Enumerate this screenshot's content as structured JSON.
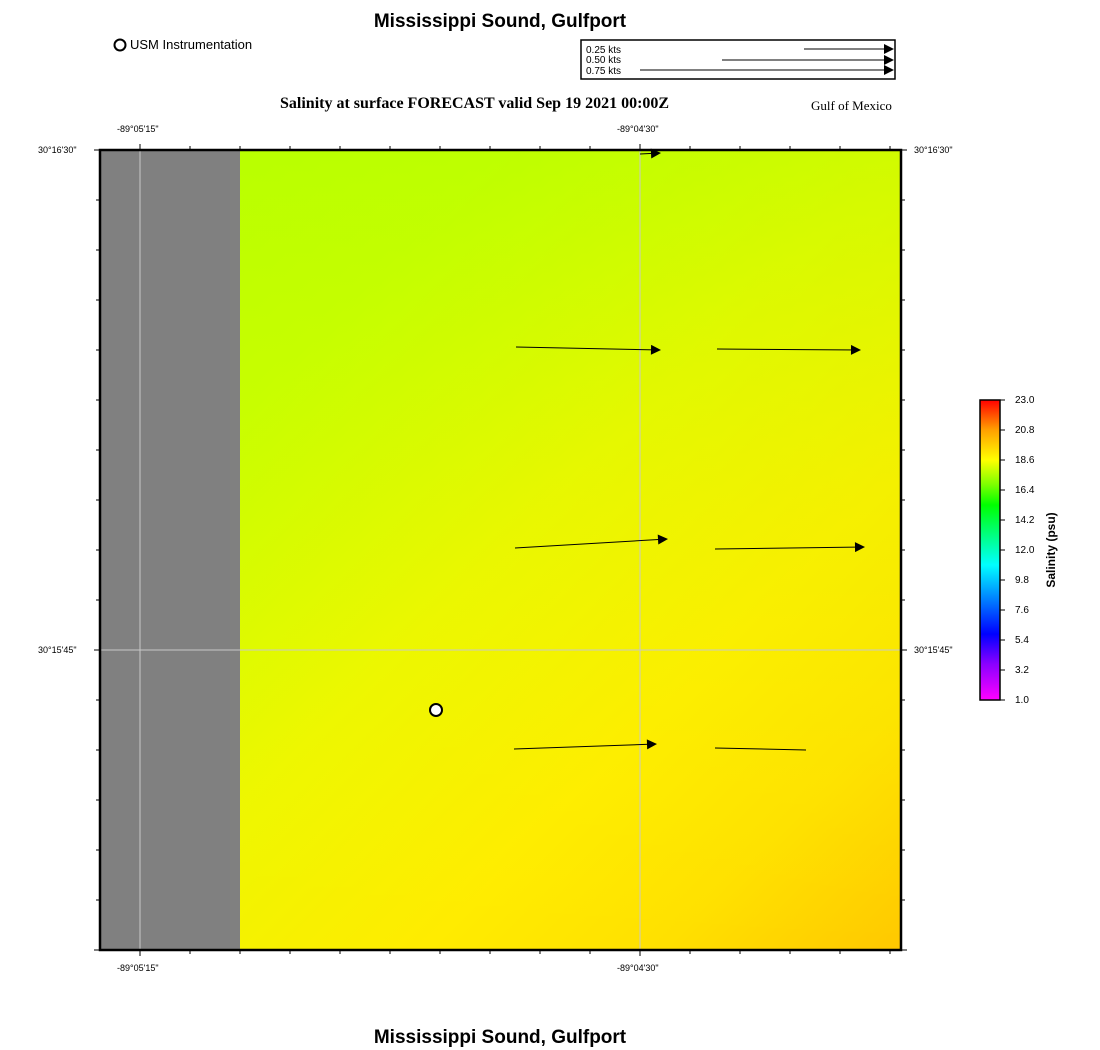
{
  "header": {
    "title": "Mississippi Sound, Gulfport",
    "subtitle": "Salinity at surface FORECAST valid Sep 19 2021 00:00Z",
    "region": "Gulf of Mexico",
    "footer_title": "Mississippi Sound, Gulfport"
  },
  "legend": {
    "station_label": "USM Instrumentation",
    "vector_keys": [
      {
        "label": "0.25 kts",
        "speed_kts": 0.25
      },
      {
        "label": "0.50 kts",
        "speed_kts": 0.5
      },
      {
        "label": "0.75 kts",
        "speed_kts": 0.75
      }
    ]
  },
  "axes": {
    "lon_ticks": [
      {
        "label": "-89°05'15\""
      },
      {
        "label": "-89°04'30\""
      }
    ],
    "lat_ticks": [
      {
        "label": "30°16'30\""
      },
      {
        "label": "30°15'45\""
      }
    ]
  },
  "colorbar": {
    "title": "Salinity (psu)",
    "ticks": [
      "23.0",
      "20.8",
      "18.6",
      "16.4",
      "14.2",
      "12.0",
      "9.8",
      "7.6",
      "5.4",
      "3.2",
      "1.0"
    ],
    "min": 1.0,
    "max": 23.0
  },
  "colors": {
    "land": "#808080",
    "salinity_low_area": "#bbff00",
    "salinity_high_area": "#ffc800"
  }
}
